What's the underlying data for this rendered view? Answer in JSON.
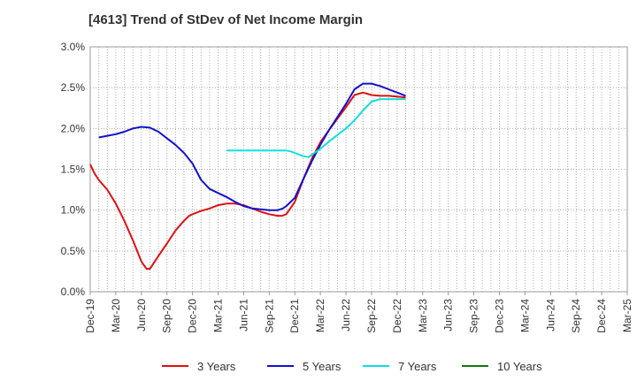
{
  "chart_data": {
    "type": "line",
    "title": "[4613]  Trend of StDev of Net Income Margin",
    "xlabel": "",
    "ylabel": "",
    "ylim": [
      0,
      3.0
    ],
    "y_ticks": [
      "0.0%",
      "0.5%",
      "1.0%",
      "1.5%",
      "2.0%",
      "2.5%",
      "3.0%"
    ],
    "y_tick_values": [
      0,
      0.5,
      1.0,
      1.5,
      2.0,
      2.5,
      3.0
    ],
    "x_ticks": [
      "Dec-19",
      "Mar-20",
      "Jun-20",
      "Sep-20",
      "Dec-20",
      "Mar-21",
      "Jun-21",
      "Sep-21",
      "Dec-21",
      "Mar-22",
      "Jun-22",
      "Sep-22",
      "Dec-22",
      "Mar-23",
      "Jun-23",
      "Sep-23",
      "Dec-23",
      "Mar-24",
      "Jun-24",
      "Sep-24",
      "Dec-24",
      "Mar-25"
    ],
    "grid": true,
    "legend_position": "bottom",
    "series": [
      {
        "name": "3 Years",
        "color": "#dd1111",
        "points": [
          [
            0,
            1.56
          ],
          [
            0.5,
            1.45
          ],
          [
            1,
            1.37
          ],
          [
            2,
            1.25
          ],
          [
            3,
            1.08
          ],
          [
            4,
            0.87
          ],
          [
            5,
            0.63
          ],
          [
            6,
            0.37
          ],
          [
            6.6,
            0.28
          ],
          [
            7,
            0.28
          ],
          [
            7.5,
            0.36
          ],
          [
            8,
            0.44
          ],
          [
            9,
            0.59
          ],
          [
            10,
            0.75
          ],
          [
            11,
            0.87
          ],
          [
            11.6,
            0.93
          ],
          [
            12,
            0.95
          ],
          [
            13,
            0.99
          ],
          [
            14,
            1.02
          ],
          [
            15,
            1.06
          ],
          [
            16,
            1.08
          ],
          [
            17,
            1.08
          ],
          [
            18,
            1.06
          ],
          [
            19,
            1.02
          ],
          [
            20,
            0.98
          ],
          [
            21,
            0.95
          ],
          [
            22,
            0.93
          ],
          [
            22.5,
            0.93
          ],
          [
            23,
            0.95
          ],
          [
            24,
            1.1
          ],
          [
            25,
            1.38
          ],
          [
            26,
            1.63
          ],
          [
            27,
            1.83
          ],
          [
            28,
            1.98
          ],
          [
            29,
            2.12
          ],
          [
            30,
            2.26
          ],
          [
            31,
            2.41
          ],
          [
            32,
            2.44
          ],
          [
            33,
            2.41
          ],
          [
            34,
            2.4
          ],
          [
            35,
            2.4
          ],
          [
            36,
            2.39
          ],
          [
            37,
            2.38
          ]
        ]
      },
      {
        "name": "5 Years",
        "color": "#1111cc",
        "points": [
          [
            1,
            1.89
          ],
          [
            2,
            1.91
          ],
          [
            3,
            1.93
          ],
          [
            4,
            1.96
          ],
          [
            5,
            2.0
          ],
          [
            6,
            2.02
          ],
          [
            7,
            2.01
          ],
          [
            8,
            1.96
          ],
          [
            9,
            1.88
          ],
          [
            10,
            1.8
          ],
          [
            11,
            1.7
          ],
          [
            12,
            1.57
          ],
          [
            13,
            1.37
          ],
          [
            14,
            1.26
          ],
          [
            15,
            1.21
          ],
          [
            16,
            1.16
          ],
          [
            17,
            1.1
          ],
          [
            18,
            1.05
          ],
          [
            19,
            1.02
          ],
          [
            20,
            1.01
          ],
          [
            21,
            1.0
          ],
          [
            22,
            1.0
          ],
          [
            22.6,
            1.02
          ],
          [
            23,
            1.05
          ],
          [
            24,
            1.15
          ],
          [
            25,
            1.38
          ],
          [
            26,
            1.6
          ],
          [
            27,
            1.8
          ],
          [
            28,
            1.98
          ],
          [
            29,
            2.14
          ],
          [
            30,
            2.3
          ],
          [
            31,
            2.48
          ],
          [
            32,
            2.55
          ],
          [
            33,
            2.55
          ],
          [
            34,
            2.52
          ],
          [
            35,
            2.48
          ],
          [
            36,
            2.44
          ],
          [
            37,
            2.4
          ]
        ]
      },
      {
        "name": "7 Years",
        "color": "#11dddd",
        "points": [
          [
            16,
            1.73
          ],
          [
            17,
            1.73
          ],
          [
            18,
            1.73
          ],
          [
            19,
            1.73
          ],
          [
            20,
            1.73
          ],
          [
            21,
            1.73
          ],
          [
            22,
            1.73
          ],
          [
            23,
            1.73
          ],
          [
            23.5,
            1.72
          ],
          [
            24,
            1.7
          ],
          [
            25,
            1.66
          ],
          [
            25.6,
            1.65
          ],
          [
            26,
            1.68
          ],
          [
            27,
            1.75
          ],
          [
            28,
            1.84
          ],
          [
            29,
            1.92
          ],
          [
            30,
            2.0
          ],
          [
            31,
            2.1
          ],
          [
            32,
            2.22
          ],
          [
            33,
            2.33
          ],
          [
            34,
            2.36
          ],
          [
            35,
            2.36
          ],
          [
            36,
            2.36
          ],
          [
            37,
            2.36
          ]
        ]
      },
      {
        "name": "10 Years",
        "color": "#117711",
        "points": []
      }
    ]
  }
}
